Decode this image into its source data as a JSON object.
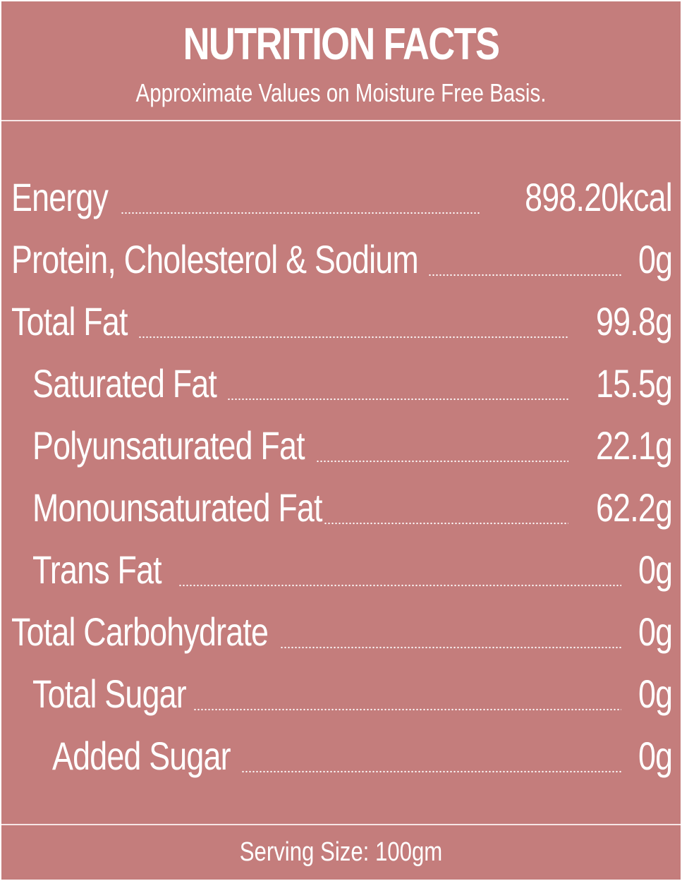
{
  "header": {
    "title": "NUTRITION FACTS",
    "subtitle": "Approximate Values on Moisture Free Basis."
  },
  "nutrients": [
    {
      "label": "Energy",
      "value": "898.20kcal",
      "indent": 0
    },
    {
      "label": "Protein, Cholesterol & Sodium",
      "value": "0g",
      "indent": 0
    },
    {
      "label": "Total Fat",
      "value": "99.8g",
      "indent": 0
    },
    {
      "label": "Saturated Fat",
      "value": "15.5g",
      "indent": 1
    },
    {
      "label": "Polyunsaturated Fat",
      "value": "22.1g",
      "indent": 1
    },
    {
      "label": "Monounsaturated Fat",
      "value": "62.2g",
      "indent": 1
    },
    {
      "label": "Trans Fat",
      "value": "0g",
      "indent": 1
    },
    {
      "label": "Total Carbohydrate",
      "value": "0g",
      "indent": 0
    },
    {
      "label": "Total Sugar",
      "value": "0g",
      "indent": 1
    },
    {
      "label": "Added Sugar",
      "value": "0g",
      "indent": 2
    }
  ],
  "footer": {
    "serving": "Serving Size: 100gm"
  },
  "colors": {
    "panel": "#c47d7c",
    "text": "#ffffff"
  }
}
